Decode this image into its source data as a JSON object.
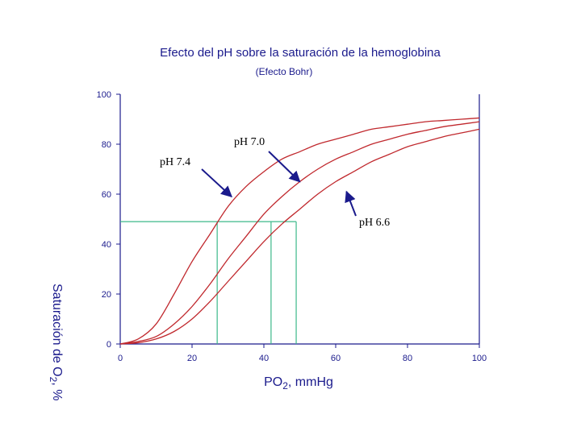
{
  "chart_data": {
    "type": "line",
    "title": "Efecto del pH sobre la saturación de la hemoglobina",
    "subtitle": "(Efecto Bohr)",
    "xlabel_main": "PO",
    "xlabel_sub": "2",
    "xlabel_rest": ", mmHg",
    "ylabel_main": "Saturación de O",
    "ylabel_sub": "2",
    "ylabel_rest": ", %",
    "xlim": [
      0,
      100
    ],
    "ylim": [
      0,
      100
    ],
    "xticks": [
      0,
      20,
      40,
      60,
      80,
      100
    ],
    "yticks": [
      0,
      20,
      40,
      60,
      80,
      100
    ],
    "x_tick_labels": [
      "0",
      "20",
      "40",
      "60",
      "80",
      "100"
    ],
    "y_tick_labels": [
      "0",
      "20",
      "40",
      "60",
      "80",
      "100"
    ],
    "grid": false,
    "x": [
      0,
      5,
      10,
      15,
      20,
      25,
      30,
      35,
      40,
      45,
      50,
      55,
      60,
      65,
      70,
      75,
      80,
      85,
      90,
      95,
      100
    ],
    "series": [
      {
        "name": "pH 7.4",
        "color": "#c0282d",
        "values": [
          0,
          2,
          8,
          20,
          33,
          44,
          55,
          63,
          69,
          74,
          77,
          80,
          82,
          84,
          86,
          87,
          88,
          89,
          89.5,
          90,
          90.5
        ]
      },
      {
        "name": "pH 7.0",
        "color": "#c0282d",
        "values": [
          0,
          1,
          3,
          8,
          15,
          24,
          34,
          43,
          52,
          59,
          65,
          70,
          74,
          77,
          80,
          82,
          84,
          85.5,
          87,
          88,
          89
        ]
      },
      {
        "name": "pH 6.6",
        "color": "#c0282d",
        "values": [
          0,
          0.5,
          2,
          5,
          10,
          17,
          25,
          33,
          41,
          48,
          54,
          60,
          65,
          69,
          73,
          76,
          79,
          81,
          83,
          84.5,
          86
        ]
      }
    ],
    "p50_level": 49,
    "p50_x": [
      27,
      42,
      49
    ],
    "reference_color": "#3cb88a",
    "annotations": [
      {
        "label": "pH 7.4",
        "points_to_x": 31,
        "points_to_y": 59
      },
      {
        "label": "pH 7.0",
        "points_to_x": 50,
        "points_to_y": 65
      },
      {
        "label": "pH 6.6",
        "points_to_x": 63,
        "points_to_y": 61
      }
    ],
    "axis_color": "#1a1a8c",
    "arrow_color": "#1a1a8c"
  }
}
